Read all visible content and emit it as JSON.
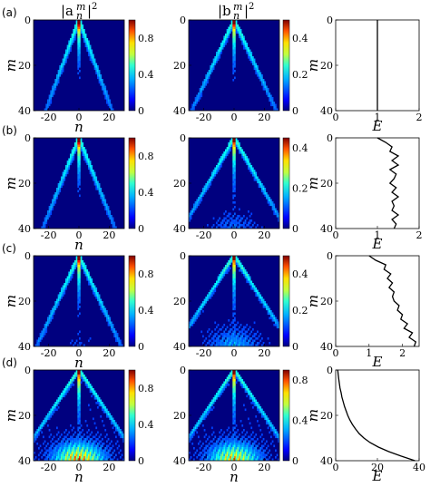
{
  "headers": [
    "|a",
    "|b"
  ],
  "header_sub": "n",
  "header_sup": "m",
  "header_pow": "2",
  "colorscale": [
    "#00007f",
    "#0000ff",
    "#0080ff",
    "#00ffff",
    "#80ff80",
    "#ffff00",
    "#ff8000",
    "#ff0000",
    "#7f0000"
  ],
  "chart_data": [
    {
      "panel": "(a)",
      "type": "heatmap",
      "heatmaps": [
        {
          "xlabel": "n",
          "ylabel": "m",
          "xticks": [
            -20,
            0,
            20
          ],
          "yticks": [
            0,
            20,
            40
          ],
          "cbar_ticks": [
            "0",
            "0.4",
            "0.8"
          ],
          "vmax": 1.0,
          "spread": 0.55,
          "glow": 0.0
        },
        {
          "xlabel": "",
          "ylabel": "",
          "xticks": [
            -20,
            0,
            20
          ],
          "yticks": [
            0,
            20,
            40
          ],
          "cbar_ticks": [
            "0",
            "0.2",
            "0.4"
          ],
          "vmax": 0.5,
          "spread": 0.7,
          "glow": 0.0
        }
      ],
      "line": {
        "type": "line",
        "xlabel": "E",
        "ylabel": "m",
        "xlim": [
          0,
          2
        ],
        "ylim": [
          0,
          40
        ],
        "xticks": [
          "0",
          "1",
          "2"
        ],
        "yticks": [
          "0",
          "20",
          "40"
        ],
        "m": [
          0,
          40
        ],
        "E": [
          1.0,
          1.0
        ]
      }
    },
    {
      "panel": "(b)",
      "type": "heatmap",
      "heatmaps": [
        {
          "xlabel": "n",
          "ylabel": "m",
          "xticks": [
            -20,
            0,
            20
          ],
          "yticks": [
            0,
            20,
            40
          ],
          "cbar_ticks": [
            "0",
            "0.4",
            "0.8"
          ],
          "vmax": 1.0,
          "spread": 0.6,
          "glow": 0.0
        },
        {
          "xlabel": "",
          "ylabel": "",
          "xticks": [
            -20,
            0,
            20
          ],
          "yticks": [
            0,
            20,
            40
          ],
          "cbar_ticks": [
            "0",
            "0.2",
            "0.4"
          ],
          "vmax": 0.45,
          "spread": 0.85,
          "glow": 0.1
        }
      ],
      "line": {
        "type": "line",
        "xlabel": "E",
        "ylabel": "m",
        "xlim": [
          0,
          2
        ],
        "ylim": [
          0,
          40
        ],
        "xticks": [
          "0",
          "1",
          "2"
        ],
        "yticks": [
          "0",
          "20",
          "40"
        ],
        "m": [
          0,
          2,
          4,
          6,
          8,
          10,
          12,
          14,
          16,
          18,
          20,
          22,
          24,
          26,
          28,
          30,
          32,
          34,
          36,
          38,
          40
        ],
        "E": [
          1.0,
          1.2,
          1.35,
          1.3,
          1.5,
          1.35,
          1.5,
          1.3,
          1.45,
          1.4,
          1.3,
          1.45,
          1.35,
          1.5,
          1.35,
          1.4,
          1.35,
          1.5,
          1.35,
          1.45,
          1.4
        ]
      }
    },
    {
      "panel": "(c)",
      "type": "heatmap",
      "heatmaps": [
        {
          "xlabel": "n",
          "ylabel": "m",
          "xticks": [
            -20,
            0,
            20
          ],
          "yticks": [
            0,
            20,
            40
          ],
          "cbar_ticks": [
            "0",
            "0.4",
            "0.8"
          ],
          "vmax": 1.0,
          "spread": 0.7,
          "glow": 0.05
        },
        {
          "xlabel": "",
          "ylabel": "",
          "xticks": [
            -20,
            0,
            20
          ],
          "yticks": [
            0,
            20,
            40
          ],
          "cbar_ticks": [
            "0",
            "0.2",
            "0.4"
          ],
          "vmax": 0.5,
          "spread": 0.95,
          "glow": 0.2
        }
      ],
      "line": {
        "type": "line",
        "xlabel": "E",
        "ylabel": "m",
        "xlim": [
          0,
          2.5
        ],
        "ylim": [
          0,
          40
        ],
        "xticks": [
          "0",
          "1",
          "2"
        ],
        "yticks": [
          "0",
          "20",
          "40"
        ],
        "m": [
          0,
          2,
          4,
          6,
          8,
          10,
          12,
          14,
          16,
          18,
          20,
          22,
          24,
          26,
          28,
          30,
          32,
          34,
          36,
          38,
          40
        ],
        "E": [
          1.0,
          1.2,
          1.5,
          1.45,
          1.65,
          1.55,
          1.7,
          1.6,
          1.75,
          1.7,
          1.75,
          1.9,
          1.85,
          2.0,
          1.95,
          2.15,
          2.05,
          2.3,
          2.2,
          2.4,
          2.35
        ]
      }
    },
    {
      "panel": "(d)",
      "type": "heatmap",
      "heatmaps": [
        {
          "xlabel": "n",
          "ylabel": "m",
          "xticks": [
            -20,
            0,
            20
          ],
          "yticks": [
            0,
            20,
            40
          ],
          "cbar_ticks": [
            "0",
            "0.4",
            "0.8"
          ],
          "vmax": 1.0,
          "spread": 1.0,
          "glow": 0.85
        },
        {
          "xlabel": "n",
          "ylabel": "",
          "xticks": [
            -20,
            0,
            20
          ],
          "yticks": [
            0,
            20,
            40
          ],
          "cbar_ticks": [
            "0",
            "0.4",
            "0.8"
          ],
          "vmax": 0.9,
          "spread": 1.0,
          "glow": 0.75
        }
      ],
      "line": {
        "type": "line",
        "xlabel": "E",
        "ylabel": "m",
        "xlim": [
          0,
          40
        ],
        "ylim": [
          0,
          40
        ],
        "xticks": [
          "0",
          "20",
          "40"
        ],
        "yticks": [
          "0",
          "20",
          "40"
        ],
        "m": [
          0,
          2,
          4,
          6,
          8,
          10,
          12,
          14,
          16,
          18,
          20,
          22,
          24,
          26,
          28,
          30,
          32,
          34,
          36,
          38,
          40
        ],
        "E": [
          1.0,
          1.2,
          1.5,
          1.8,
          2.1,
          2.6,
          3.0,
          3.6,
          4.2,
          5.0,
          5.8,
          6.8,
          8.0,
          9.5,
          11.2,
          13.5,
          16.5,
          20.5,
          25.5,
          31.5,
          38.0
        ]
      }
    }
  ]
}
